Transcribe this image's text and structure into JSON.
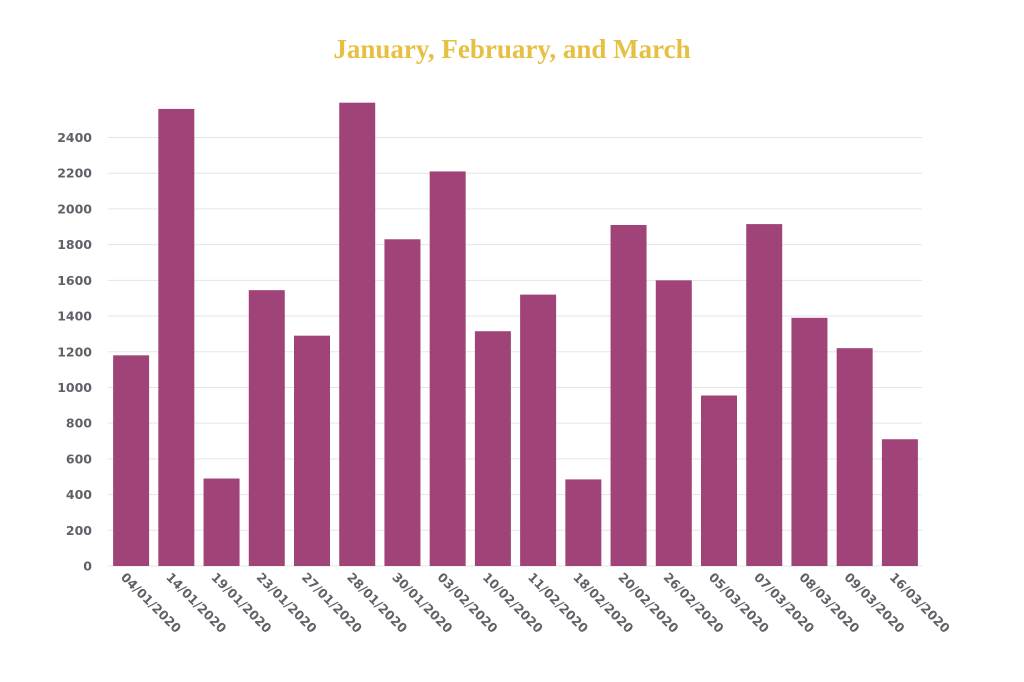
{
  "chart_data": {
    "type": "bar",
    "title": "January, February, and March",
    "xlabel": "",
    "ylabel": "",
    "categories": [
      "04/01/2020",
      "14/01/2020",
      "19/01/2020",
      "23/01/2020",
      "27/01/2020",
      "28/01/2020",
      "30/01/2020",
      "03/02/2020",
      "10/02/2020",
      "11/02/2020",
      "18/02/2020",
      "20/02/2020",
      "26/02/2020",
      "05/03/2020",
      "07/03/2020",
      "08/03/2020",
      "09/03/2020",
      "16/03/2020"
    ],
    "values": [
      1180,
      2560,
      490,
      1545,
      1290,
      2595,
      1830,
      2210,
      1315,
      1520,
      485,
      1910,
      1600,
      955,
      1915,
      1390,
      1220,
      710
    ],
    "ylim": [
      0,
      2600
    ],
    "yticks": [
      0,
      200,
      400,
      600,
      800,
      1000,
      1200,
      1400,
      1600,
      1800,
      2000,
      2200,
      2400
    ],
    "grid": true,
    "legend": "none",
    "colors": {
      "bar": "#a04378",
      "title": "#e6c042",
      "tick_text": "#5f6169",
      "grid": "#e3e5ea"
    }
  }
}
